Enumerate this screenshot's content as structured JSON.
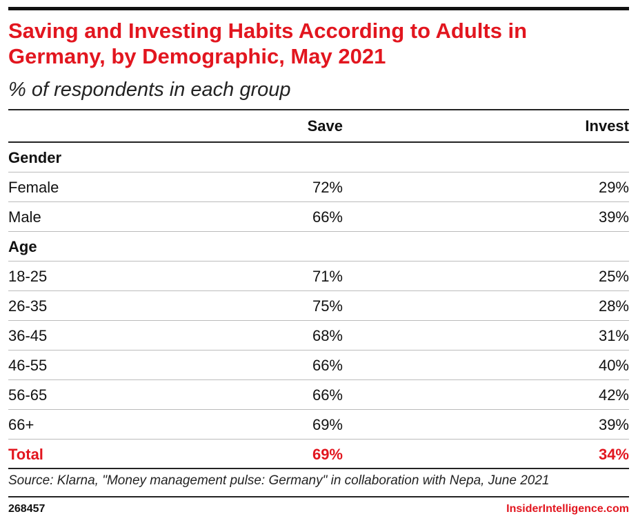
{
  "title": "Saving and Investing Habits According to Adults in Germany, by Demographic, May 2021",
  "subtitle": "% of respondents in each group",
  "table": {
    "columns": [
      "Save",
      "Invest"
    ],
    "sections": [
      {
        "name": "Gender",
        "rows": [
          [
            "Female",
            "72%",
            "29%"
          ],
          [
            "Male",
            "66%",
            "39%"
          ]
        ]
      },
      {
        "name": "Age",
        "rows": [
          [
            "18-25",
            "71%",
            "25%"
          ],
          [
            "26-35",
            "75%",
            "28%"
          ],
          [
            "36-45",
            "68%",
            "31%"
          ],
          [
            "46-55",
            "66%",
            "40%"
          ],
          [
            "56-65",
            "66%",
            "42%"
          ],
          [
            "66+",
            "69%",
            "39%"
          ]
        ]
      }
    ],
    "total": [
      "Total",
      "69%",
      "34%"
    ]
  },
  "footer": {
    "source": "Source: Klarna, \"Money management pulse: Germany\" in collaboration with Nepa, June 2021",
    "id": "268457",
    "brand": "InsiderIntelligence.com"
  }
}
